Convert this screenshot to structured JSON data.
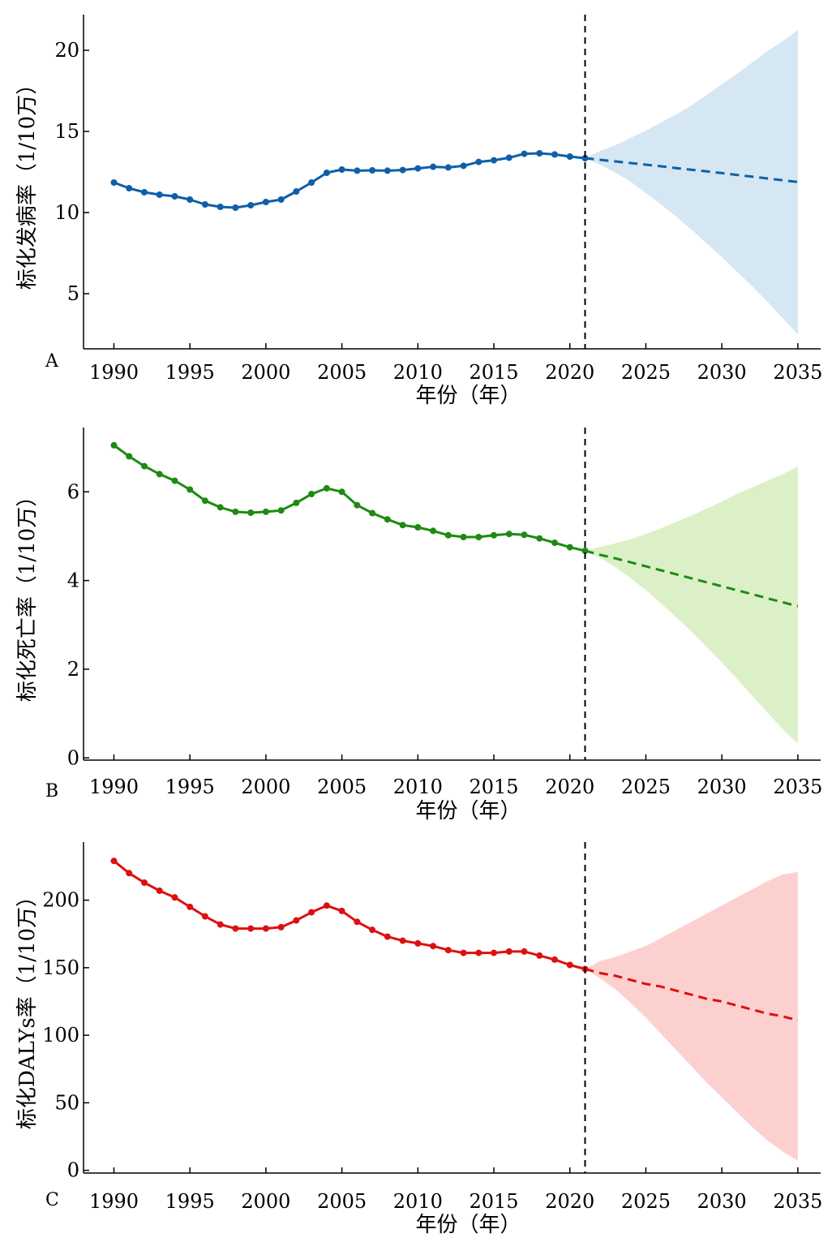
{
  "chart_data": [
    {
      "type": "line",
      "panel_label": "A",
      "xlabel": "年份（年）",
      "ylabel": "标化发病率（1/10万）",
      "xlim": [
        1988,
        2036.5
      ],
      "ylim": [
        1.6,
        22.2
      ],
      "xticks": [
        1990,
        1995,
        2000,
        2005,
        2010,
        2015,
        2020,
        2025,
        2030,
        2035
      ],
      "yticks": [
        5,
        10,
        15,
        20
      ],
      "divider_x": 2021,
      "color": "#0f5fa8",
      "band_color": "#d4e7f2",
      "observed": {
        "x": [
          1990,
          1991,
          1992,
          1993,
          1994,
          1995,
          1996,
          1997,
          1998,
          1999,
          2000,
          2001,
          2002,
          2003,
          2004,
          2005,
          2006,
          2007,
          2008,
          2009,
          2010,
          2011,
          2012,
          2013,
          2014,
          2015,
          2016,
          2017,
          2018,
          2019,
          2020,
          2021
        ],
        "y": [
          11.85,
          11.5,
          11.25,
          11.1,
          11.0,
          10.8,
          10.5,
          10.35,
          10.3,
          10.45,
          10.65,
          10.8,
          11.3,
          11.85,
          12.45,
          12.65,
          12.58,
          12.6,
          12.58,
          12.62,
          12.72,
          12.82,
          12.78,
          12.88,
          13.12,
          13.22,
          13.38,
          13.62,
          13.65,
          13.58,
          13.45,
          13.35
        ]
      },
      "forecast": {
        "x": [
          2021,
          2022,
          2023,
          2024,
          2025,
          2026,
          2027,
          2028,
          2029,
          2030,
          2031,
          2032,
          2033,
          2034,
          2035
        ],
        "y": [
          13.35,
          13.25,
          13.15,
          13.05,
          12.95,
          12.85,
          12.74,
          12.64,
          12.54,
          12.43,
          12.32,
          12.21,
          12.1,
          11.99,
          11.88
        ],
        "lower": [
          13.35,
          12.95,
          12.45,
          11.9,
          11.2,
          10.5,
          9.75,
          8.95,
          8.1,
          7.25,
          6.35,
          5.45,
          4.5,
          3.5,
          2.5
        ],
        "upper": [
          13.35,
          13.8,
          14.15,
          14.6,
          15.05,
          15.55,
          16.05,
          16.6,
          17.25,
          17.9,
          18.55,
          19.25,
          19.95,
          20.55,
          21.25
        ]
      }
    },
    {
      "type": "line",
      "panel_label": "B",
      "xlabel": "年份（年）",
      "ylabel": "标化死亡率（1/10万）",
      "xlim": [
        1988,
        2036.5
      ],
      "ylim": [
        -0.05,
        7.45
      ],
      "xticks": [
        1990,
        1995,
        2000,
        2005,
        2010,
        2015,
        2020,
        2025,
        2030,
        2035
      ],
      "yticks": [
        0,
        2,
        4,
        6
      ],
      "divider_x": 2021,
      "color": "#1e8a12",
      "band_color": "#dcf0c8",
      "observed": {
        "x": [
          1990,
          1991,
          1992,
          1993,
          1994,
          1995,
          1996,
          1997,
          1998,
          1999,
          2000,
          2001,
          2002,
          2003,
          2004,
          2005,
          2006,
          2007,
          2008,
          2009,
          2010,
          2011,
          2012,
          2013,
          2014,
          2015,
          2016,
          2017,
          2018,
          2019,
          2020,
          2021
        ],
        "y": [
          7.05,
          6.8,
          6.58,
          6.4,
          6.25,
          6.05,
          5.8,
          5.65,
          5.55,
          5.53,
          5.55,
          5.58,
          5.75,
          5.95,
          6.08,
          6.0,
          5.7,
          5.52,
          5.38,
          5.25,
          5.2,
          5.12,
          5.02,
          4.98,
          4.98,
          5.02,
          5.05,
          5.03,
          4.95,
          4.85,
          4.75,
          4.67
        ]
      },
      "forecast": {
        "x": [
          2021,
          2022,
          2023,
          2024,
          2025,
          2026,
          2027,
          2028,
          2029,
          2030,
          2031,
          2032,
          2033,
          2034,
          2035
        ],
        "y": [
          4.67,
          4.58,
          4.5,
          4.41,
          4.32,
          4.23,
          4.14,
          4.05,
          3.96,
          3.87,
          3.78,
          3.69,
          3.6,
          3.51,
          3.42
        ],
        "lower": [
          4.67,
          4.5,
          4.3,
          4.05,
          3.78,
          3.48,
          3.17,
          2.85,
          2.5,
          2.15,
          1.78,
          1.4,
          1.02,
          0.65,
          0.32
        ],
        "upper": [
          4.67,
          4.76,
          4.84,
          4.93,
          5.05,
          5.18,
          5.32,
          5.47,
          5.62,
          5.78,
          5.95,
          6.1,
          6.25,
          6.4,
          6.57
        ]
      }
    },
    {
      "type": "line",
      "panel_label": "C",
      "xlabel": "年份（年）",
      "ylabel": "标化DALYs率（1/10万）",
      "xlim": [
        1988,
        2036.5
      ],
      "ylim": [
        -2,
        243
      ],
      "xticks": [
        1990,
        1995,
        2000,
        2005,
        2010,
        2015,
        2020,
        2025,
        2030,
        2035
      ],
      "yticks": [
        0,
        50,
        100,
        150,
        200
      ],
      "divider_x": 2021,
      "color": "#dd1010",
      "band_color": "#fdd0d0",
      "observed": {
        "x": [
          1990,
          1991,
          1992,
          1993,
          1994,
          1995,
          1996,
          1997,
          1998,
          1999,
          2000,
          2001,
          2002,
          2003,
          2004,
          2005,
          2006,
          2007,
          2008,
          2009,
          2010,
          2011,
          2012,
          2013,
          2014,
          2015,
          2016,
          2017,
          2018,
          2019,
          2020,
          2021
        ],
        "y": [
          229,
          220,
          213,
          207,
          202,
          195,
          188,
          182,
          179,
          179,
          179,
          180,
          185,
          191,
          196,
          192,
          184,
          178,
          173,
          170,
          168,
          166,
          163,
          161,
          161,
          161,
          162,
          162,
          159,
          156,
          152,
          149
        ]
      },
      "forecast": {
        "x": [
          2021,
          2022,
          2023,
          2024,
          2025,
          2026,
          2027,
          2028,
          2029,
          2030,
          2031,
          2032,
          2033,
          2034,
          2035
        ],
        "y": [
          149,
          146,
          144,
          141,
          138,
          136,
          133,
          130,
          127,
          125,
          122,
          119,
          116,
          114,
          111
        ],
        "lower": [
          149,
          142,
          134,
          124,
          113,
          101,
          89,
          77,
          65,
          54,
          43,
          32,
          22,
          14,
          7
        ],
        "upper": [
          149,
          155,
          158,
          162,
          166,
          172,
          178,
          184,
          190,
          196,
          202,
          208,
          214,
          219,
          221
        ]
      }
    }
  ]
}
